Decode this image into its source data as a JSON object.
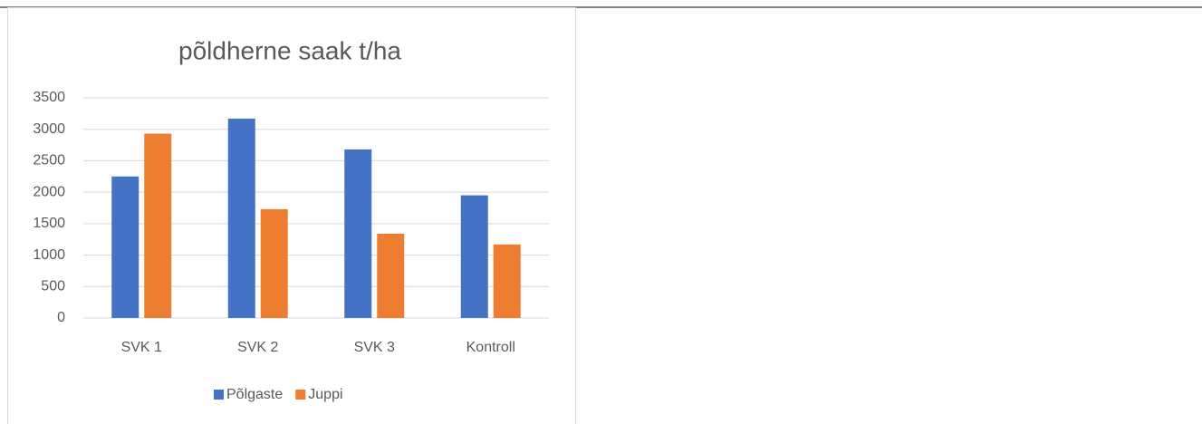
{
  "chart_data": {
    "type": "bar",
    "title": "põldherne saak t/ha",
    "categories": [
      "SVK 1",
      "SVK 2",
      "SVK 3",
      "Kontroll"
    ],
    "series": [
      {
        "name": "Põlgaste",
        "color": "#4472c4",
        "values": [
          2250,
          3170,
          2680,
          1950
        ]
      },
      {
        "name": "Juppi",
        "color": "#ed7d31",
        "values": [
          2930,
          1730,
          1340,
          1170
        ]
      }
    ],
    "ylim": [
      0,
      3500
    ],
    "yticks": [
      0,
      500,
      1000,
      1500,
      2000,
      2500,
      3000,
      3500
    ],
    "grid": true,
    "legend": "bottom"
  }
}
